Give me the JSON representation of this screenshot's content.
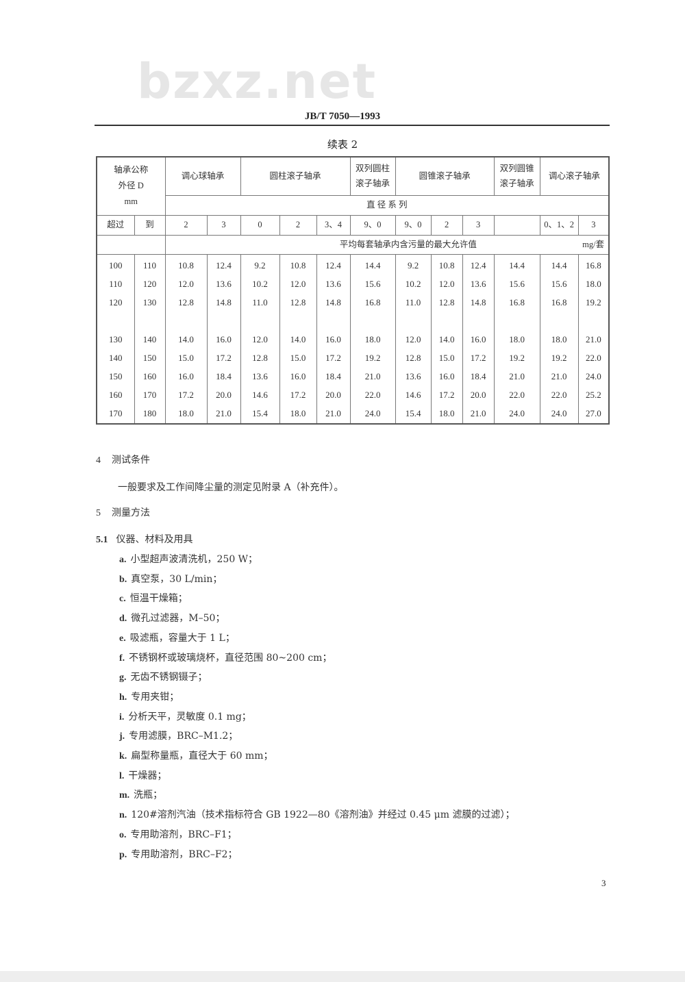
{
  "watermark": "bzxz.net",
  "doc_code": "JB/T 7050—1993",
  "table": {
    "caption": "续表 2",
    "dim_header": [
      "轴承公称",
      "外径 D",
      "mm"
    ],
    "types": [
      "调心球轴承",
      "圆柱滚子轴承",
      "双列圆柱滚子轴承",
      "圆锥滚子轴承",
      "双列圆锥滚子轴承",
      "调心滚子轴承"
    ],
    "series_header": "直 径 系 列",
    "from_label": "超过",
    "to_label": "到",
    "series": [
      "2",
      "3",
      "0",
      "2",
      "3、4",
      "9、0",
      "9、0",
      "2",
      "3",
      "",
      "0、1、2",
      "3"
    ],
    "value_header": "平均每套轴承内含污量的最大允许值",
    "unit": "mg/套",
    "rows": [
      [
        "100",
        "110",
        "10.8",
        "12.4",
        "9.2",
        "10.8",
        "12.4",
        "14.4",
        "9.2",
        "10.8",
        "12.4",
        "14.4",
        "14.4",
        "16.8"
      ],
      [
        "110",
        "120",
        "12.0",
        "13.6",
        "10.2",
        "12.0",
        "13.6",
        "15.6",
        "10.2",
        "12.0",
        "13.6",
        "15.6",
        "15.6",
        "18.0"
      ],
      [
        "120",
        "130",
        "12.8",
        "14.8",
        "11.0",
        "12.8",
        "14.8",
        "16.8",
        "11.0",
        "12.8",
        "14.8",
        "16.8",
        "16.8",
        "19.2"
      ],
      [
        "130",
        "140",
        "14.0",
        "16.0",
        "12.0",
        "14.0",
        "16.0",
        "18.0",
        "12.0",
        "14.0",
        "16.0",
        "18.0",
        "18.0",
        "21.0"
      ],
      [
        "140",
        "150",
        "15.0",
        "17.2",
        "12.8",
        "15.0",
        "17.2",
        "19.2",
        "12.8",
        "15.0",
        "17.2",
        "19.2",
        "19.2",
        "22.0"
      ],
      [
        "150",
        "160",
        "16.0",
        "18.4",
        "13.6",
        "16.0",
        "18.4",
        "21.0",
        "13.6",
        "16.0",
        "18.4",
        "21.0",
        "21.0",
        "24.0"
      ],
      [
        "160",
        "170",
        "17.2",
        "20.0",
        "14.6",
        "17.2",
        "20.0",
        "22.0",
        "14.6",
        "17.2",
        "20.0",
        "22.0",
        "22.0",
        "25.2"
      ],
      [
        "170",
        "180",
        "18.0",
        "21.0",
        "15.4",
        "18.0",
        "21.0",
        "24.0",
        "15.4",
        "18.0",
        "21.0",
        "24.0",
        "24.0",
        "27.0"
      ]
    ]
  },
  "sections": {
    "s4": {
      "num": "4",
      "title": "测试条件",
      "body": "一般要求及工作间降尘量的测定见附录 A（补充件）。"
    },
    "s5": {
      "num": "5",
      "title": "测量方法"
    },
    "s51": {
      "num": "5.1",
      "title": "仪器、材料及用具"
    }
  },
  "items": [
    {
      "mark": "a.",
      "text": "小型超声波清洗机，250 W；"
    },
    {
      "mark": "b.",
      "text": "真空泵，30 L/min；"
    },
    {
      "mark": "c.",
      "text": "恒温干燥箱；"
    },
    {
      "mark": "d.",
      "text": "微孔过滤器，M–50；"
    },
    {
      "mark": "e.",
      "text": "吸滤瓶，容量大于 1 L；"
    },
    {
      "mark": "f.",
      "text": "不锈钢杯或玻璃烧杯，直径范围 80~200 cm；"
    },
    {
      "mark": "g.",
      "text": "无齿不锈钢镊子；"
    },
    {
      "mark": "h.",
      "text": "专用夹钳；"
    },
    {
      "mark": "i.",
      "text": "分析天平，灵敏度 0.1 mg；"
    },
    {
      "mark": "j.",
      "text": "专用滤膜，BRC–M1.2；"
    },
    {
      "mark": "k.",
      "text": "扁型称量瓶，直径大于 60 mm；"
    },
    {
      "mark": "l.",
      "text": "干燥器；"
    },
    {
      "mark": "m.",
      "text": "洗瓶；"
    },
    {
      "mark": "n.",
      "text": "120#溶剂汽油（技术指标符合 GB 1922—80《溶剂油》并经过 0.45 μm 滤膜的过滤）；"
    },
    {
      "mark": "o.",
      "text": "专用助溶剂，BRC–F1；"
    },
    {
      "mark": "p.",
      "text": "专用助溶剂，BRC–F2；"
    }
  ],
  "page_number": "3"
}
